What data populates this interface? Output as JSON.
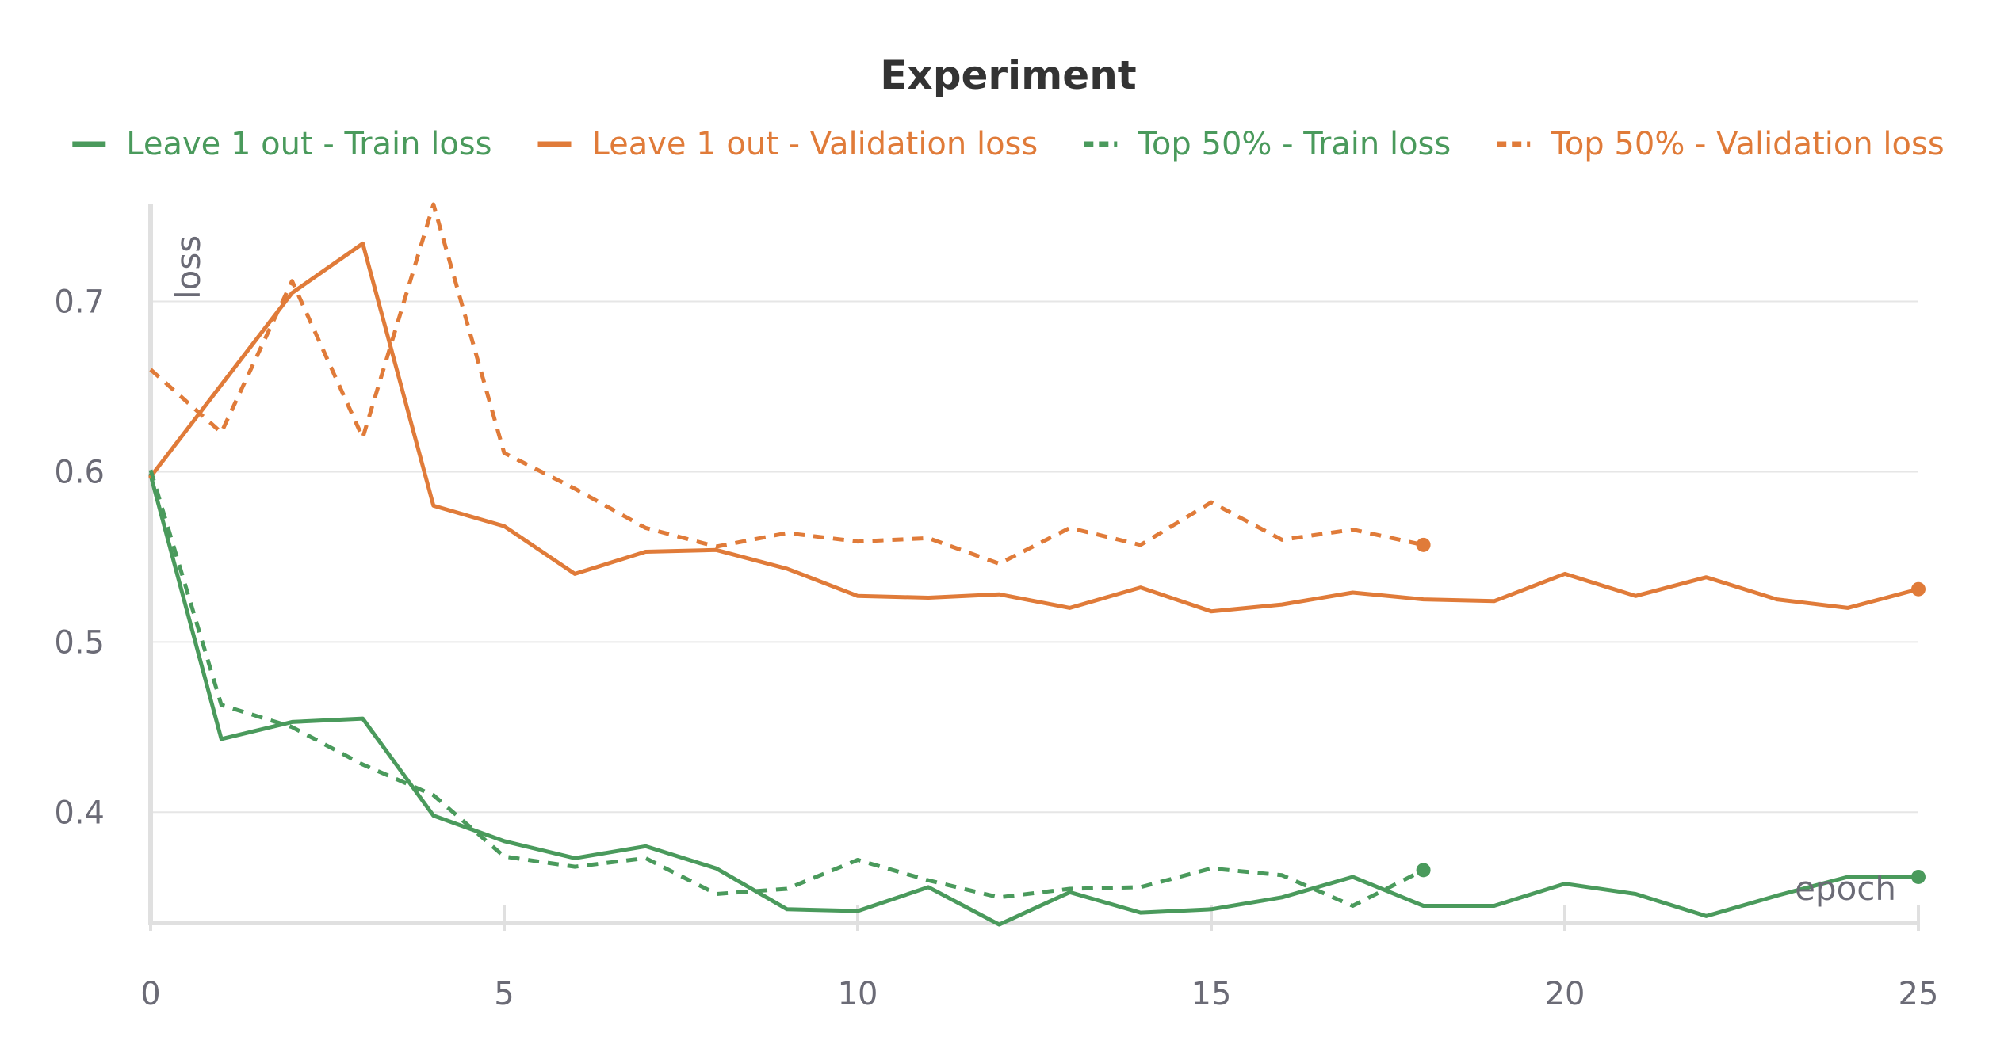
{
  "chart_data": {
    "type": "line",
    "title": "Experiment",
    "xlabel": "epoch",
    "ylabel": "loss",
    "xlim": [
      0,
      25
    ],
    "ylim": [
      0.335,
      0.757
    ],
    "xticks": [
      0,
      5,
      10,
      15,
      20,
      25
    ],
    "yticks": [
      0.4,
      0.5,
      0.6,
      0.7
    ],
    "grid": true,
    "legend": "top",
    "series": [
      {
        "name": "Leave 1 out - Train loss",
        "color": "#4a9a5c",
        "dash": "solid",
        "x": [
          0,
          1,
          2,
          3,
          4,
          5,
          6,
          7,
          8,
          9,
          10,
          11,
          12,
          13,
          14,
          15,
          16,
          17,
          18,
          19,
          20,
          21,
          22,
          23,
          24,
          25
        ],
        "y": [
          0.598,
          0.443,
          0.453,
          0.455,
          0.398,
          0.383,
          0.373,
          0.38,
          0.367,
          0.343,
          0.342,
          0.356,
          0.334,
          0.353,
          0.341,
          0.343,
          0.35,
          0.362,
          0.345,
          0.345,
          0.358,
          0.352,
          0.339,
          0.351,
          0.362,
          0.362
        ]
      },
      {
        "name": "Leave 1 out - Validation loss",
        "color": "#e07b39",
        "dash": "solid",
        "x": [
          0,
          1,
          2,
          3,
          4,
          5,
          6,
          7,
          8,
          9,
          10,
          11,
          12,
          13,
          14,
          15,
          16,
          17,
          18,
          19,
          20,
          21,
          22,
          23,
          24,
          25
        ],
        "y": [
          0.597,
          0.651,
          0.705,
          0.734,
          0.58,
          0.568,
          0.54,
          0.553,
          0.554,
          0.543,
          0.527,
          0.526,
          0.528,
          0.52,
          0.532,
          0.518,
          0.522,
          0.529,
          0.525,
          0.524,
          0.54,
          0.527,
          0.538,
          0.525,
          0.52,
          0.531
        ]
      },
      {
        "name": "Top 50% - Train loss",
        "color": "#4a9a5c",
        "dash": "dashed",
        "x": [
          0,
          1,
          2,
          3,
          4,
          5,
          6,
          7,
          8,
          9,
          10,
          11,
          12,
          13,
          14,
          15,
          16,
          17,
          18
        ],
        "y": [
          0.601,
          0.463,
          0.45,
          0.428,
          0.41,
          0.374,
          0.368,
          0.373,
          0.352,
          0.355,
          0.372,
          0.36,
          0.35,
          0.355,
          0.356,
          0.367,
          0.363,
          0.345,
          0.366
        ]
      },
      {
        "name": "Top 50% - Validation loss",
        "color": "#e07b39",
        "dash": "dashed",
        "x": [
          0,
          1,
          2,
          3,
          4,
          5,
          6,
          7,
          8,
          9,
          10,
          11,
          12,
          13,
          14,
          15,
          16,
          17,
          18
        ],
        "y": [
          0.66,
          0.623,
          0.712,
          0.62,
          0.757,
          0.611,
          0.59,
          0.567,
          0.556,
          0.564,
          0.559,
          0.561,
          0.546,
          0.567,
          0.557,
          0.582,
          0.56,
          0.566,
          0.557
        ]
      }
    ]
  }
}
